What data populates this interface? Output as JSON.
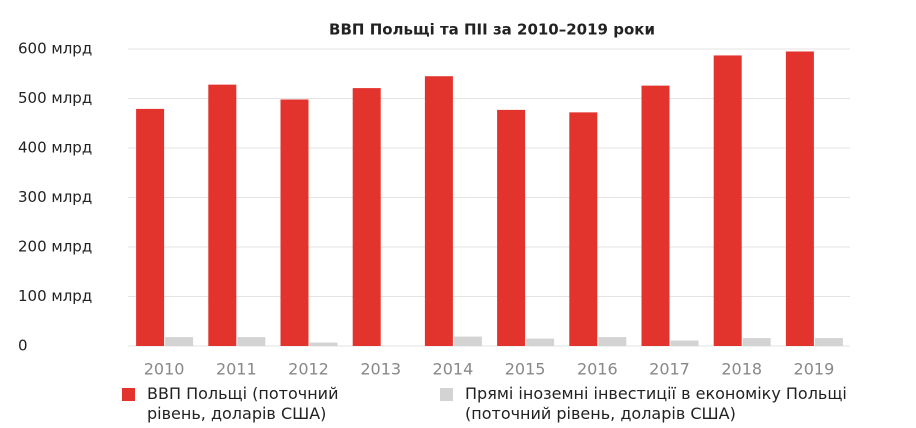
{
  "chart_data": {
    "type": "bar",
    "title": "ВВП Польщі та ПІІ за 2010–2019 роки",
    "categories": [
      "2010",
      "2011",
      "2012",
      "2013",
      "2014",
      "2015",
      "2016",
      "2017",
      "2018",
      "2019"
    ],
    "series": [
      {
        "name": "ВВП Польщі (поточний рівень, доларів США)",
        "color": "#e2332d",
        "values": [
          479,
          528,
          498,
          521,
          545,
          477,
          472,
          526,
          587,
          595
        ]
      },
      {
        "name": "Прямі іноземні інвестиції в економіку Польщі (поточний рівень, доларів США)",
        "color": "#d3d3d3",
        "values": [
          18,
          18,
          7,
          0,
          19,
          15,
          18,
          11,
          16,
          16
        ]
      }
    ],
    "ylim": [
      0,
      600
    ],
    "yticks": [
      0,
      {
        "value": 100,
        "label": "100 млрд"
      },
      {
        "value": 200,
        "label": "200 млрд"
      },
      {
        "value": 300,
        "label": "300 млрд"
      },
      {
        "value": 400,
        "label": "400 млрд"
      },
      {
        "value": 500,
        "label": "500 млрд"
      },
      {
        "value": 600,
        "label": "600 млрд"
      }
    ],
    "grid": true
  }
}
